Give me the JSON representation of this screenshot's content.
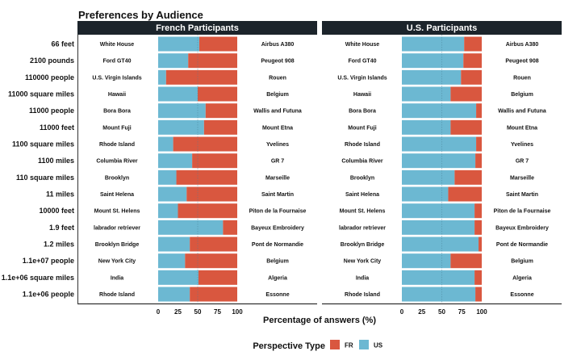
{
  "chart_data": {
    "type": "bar",
    "orientation": "horizontal-stacked-100",
    "title": "Preferences by Audience",
    "xlabel": "Percentage of answers (%)",
    "ylabel": "",
    "xlim": [
      0,
      100
    ],
    "x_ticks": [
      "0",
      "25",
      "50",
      "75",
      "100"
    ],
    "reference_line": 50,
    "legend": {
      "title": "Perspective Type",
      "position": "bottom",
      "entries": [
        {
          "name": "FR",
          "color": "#d9573f"
        },
        {
          "name": "US",
          "color": "#6cb8d2"
        }
      ]
    },
    "categories": [
      "66 feet",
      "2100 pounds",
      "110000 people",
      "11000 square miles",
      "11000 people",
      "11000 feet",
      "1100 square miles",
      "1100 miles",
      "110 square miles",
      "11 miles",
      "10000 feet",
      "1.9 feet",
      "1.2 miles",
      "1.1e+07 people",
      "1.1e+06 square miles",
      "1.1e+06 people"
    ],
    "us_references": [
      "White House",
      "Ford GT40",
      "U.S. Virgin Islands",
      "Hawaii",
      "Bora Bora",
      "Mount Fuji",
      "Rhode Island",
      "Columbia River",
      "Brooklyn",
      "Saint Helena",
      "Mount St. Helens",
      "labrador retriever",
      "Brooklyn Bridge",
      "New York City",
      "India",
      "Rhode Island"
    ],
    "fr_references": [
      "Airbus A380",
      "Peugeot 908",
      "Rouen",
      "Belgium",
      "Wallis and Futuna",
      "Mount Etna",
      "Yvelines",
      "GR 7",
      "Marseille",
      "Saint Martin",
      "Piton de la Fournaise",
      "Bayeux Embroidery",
      "Pont de Normandie",
      "Belgium",
      "Algeria",
      "Essonne"
    ],
    "panels": [
      {
        "name": "French Participants",
        "series": [
          {
            "name": "US",
            "values": [
              52,
              38,
              10,
              50,
              60,
              58,
              19,
              43,
              23,
              36,
              25,
              82,
              40,
              34,
              51,
              40
            ]
          },
          {
            "name": "FR",
            "values": [
              48,
              62,
              90,
              50,
              40,
              42,
              81,
              57,
              77,
              64,
              75,
              18,
              60,
              66,
              49,
              60
            ]
          }
        ]
      },
      {
        "name": "U.S. Participants",
        "series": [
          {
            "name": "US",
            "values": [
              78,
              77,
              74,
              61,
              93,
              61,
              93,
              92,
              66,
              58,
              91,
              91,
              96,
              61,
              91,
              92
            ]
          },
          {
            "name": "FR",
            "values": [
              22,
              23,
              26,
              39,
              7,
              39,
              7,
              8,
              34,
              42,
              9,
              9,
              4,
              39,
              9,
              8
            ]
          }
        ]
      }
    ]
  }
}
